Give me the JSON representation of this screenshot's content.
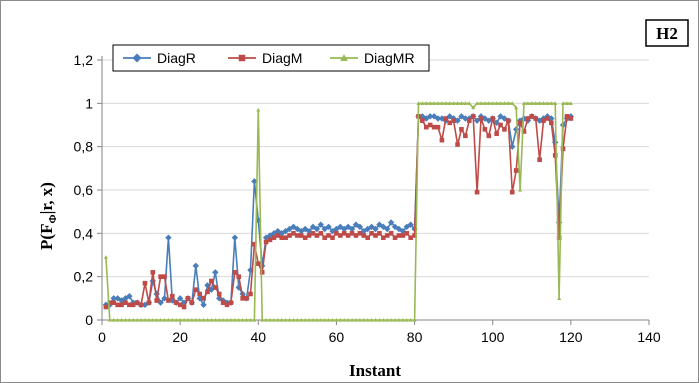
{
  "chart_data": {
    "type": "line",
    "title": "",
    "badge": "H2",
    "xlabel": "Instant",
    "ylabel": "P(F",
    "ylabel_sub": "Φ",
    "ylabel_rest": "|r, x)",
    "xlim": [
      0,
      140
    ],
    "ylim": [
      0,
      1.2
    ],
    "x_ticks": [
      "0",
      "20",
      "40",
      "60",
      "80",
      "100",
      "120",
      "140"
    ],
    "y_ticks": [
      "0",
      "0,2",
      "0,4",
      "0,6",
      "0,8",
      "1",
      "1,2"
    ],
    "grid": "horizontal",
    "legend_position": "top-left",
    "x": [
      1,
      2,
      3,
      4,
      5,
      6,
      7,
      8,
      9,
      10,
      11,
      12,
      13,
      14,
      15,
      16,
      17,
      18,
      19,
      20,
      21,
      22,
      23,
      24,
      25,
      26,
      27,
      28,
      29,
      30,
      31,
      32,
      33,
      34,
      35,
      36,
      37,
      38,
      39,
      40,
      41,
      42,
      43,
      44,
      45,
      46,
      47,
      48,
      49,
      50,
      51,
      52,
      53,
      54,
      55,
      56,
      57,
      58,
      59,
      60,
      61,
      62,
      63,
      64,
      65,
      66,
      67,
      68,
      69,
      70,
      71,
      72,
      73,
      74,
      75,
      76,
      77,
      78,
      79,
      80,
      81,
      82,
      83,
      84,
      85,
      86,
      87,
      88,
      89,
      90,
      91,
      92,
      93,
      94,
      95,
      96,
      97,
      98,
      99,
      100,
      101,
      102,
      103,
      104,
      105,
      106,
      107,
      108,
      109,
      110,
      111,
      112,
      113,
      114,
      115,
      116,
      117,
      118,
      119,
      120
    ],
    "series": [
      {
        "name": "DiagR",
        "color": "#4a7ebb",
        "marker": "diamond",
        "values": [
          0.07,
          0.07,
          0.1,
          0.1,
          0.09,
          0.1,
          0.11,
          0.08,
          0.08,
          0.07,
          0.07,
          0.08,
          0.18,
          0.12,
          0.08,
          0.1,
          0.38,
          0.09,
          0.08,
          0.1,
          0.08,
          0.1,
          0.08,
          0.25,
          0.1,
          0.07,
          0.16,
          0.14,
          0.22,
          0.1,
          0.09,
          0.08,
          0.08,
          0.38,
          0.15,
          0.12,
          0.1,
          0.23,
          0.64,
          0.46,
          0.25,
          0.38,
          0.39,
          0.4,
          0.41,
          0.4,
          0.41,
          0.42,
          0.43,
          0.42,
          0.41,
          0.42,
          0.41,
          0.43,
          0.42,
          0.44,
          0.42,
          0.43,
          0.41,
          0.42,
          0.43,
          0.42,
          0.43,
          0.42,
          0.44,
          0.43,
          0.41,
          0.42,
          0.43,
          0.42,
          0.44,
          0.43,
          0.42,
          0.45,
          0.43,
          0.42,
          0.41,
          0.43,
          0.44,
          0.42,
          0.94,
          0.94,
          0.93,
          0.94,
          0.94,
          0.93,
          0.93,
          0.92,
          0.94,
          0.93,
          0.92,
          0.94,
          0.93,
          0.93,
          0.94,
          0.92,
          0.94,
          0.93,
          0.92,
          0.93,
          0.91,
          0.94,
          0.93,
          0.92,
          0.8,
          0.88,
          0.92,
          0.93,
          0.92,
          0.94,
          0.93,
          0.92,
          0.93,
          0.94,
          0.93,
          0.82,
          0.45,
          0.9,
          0.93,
          0.94
        ]
      },
      {
        "name": "DiagM",
        "color": "#be4b48",
        "marker": "square",
        "values": [
          0.06,
          0.08,
          0.08,
          0.07,
          0.07,
          0.08,
          0.07,
          0.07,
          0.08,
          0.07,
          0.17,
          0.08,
          0.22,
          0.09,
          0.2,
          0.2,
          0.09,
          0.11,
          0.08,
          0.07,
          0.06,
          0.1,
          0.08,
          0.14,
          0.12,
          0.1,
          0.13,
          0.18,
          0.15,
          0.12,
          0.08,
          0.07,
          0.08,
          0.22,
          0.2,
          0.1,
          0.1,
          0.12,
          0.35,
          0.26,
          0.22,
          0.36,
          0.37,
          0.38,
          0.39,
          0.38,
          0.38,
          0.39,
          0.4,
          0.39,
          0.39,
          0.38,
          0.39,
          0.4,
          0.39,
          0.4,
          0.38,
          0.39,
          0.38,
          0.4,
          0.39,
          0.4,
          0.39,
          0.4,
          0.39,
          0.4,
          0.39,
          0.38,
          0.4,
          0.39,
          0.4,
          0.38,
          0.39,
          0.4,
          0.38,
          0.39,
          0.39,
          0.4,
          0.38,
          0.39,
          0.94,
          0.92,
          0.89,
          0.9,
          0.89,
          0.89,
          0.83,
          0.93,
          0.91,
          0.92,
          0.81,
          0.88,
          0.85,
          0.92,
          0.94,
          0.59,
          0.93,
          0.88,
          0.85,
          0.93,
          0.86,
          0.9,
          0.88,
          0.92,
          0.59,
          0.69,
          0.91,
          0.87,
          0.93,
          0.94,
          0.93,
          0.74,
          0.92,
          0.93,
          0.91,
          0.76,
          0.38,
          0.79,
          0.94,
          0.93
        ]
      },
      {
        "name": "DiagMR",
        "color": "#98b954",
        "marker": "triangle",
        "values": [
          0.29,
          0,
          0,
          0,
          0,
          0,
          0,
          0,
          0,
          0,
          0,
          0,
          0,
          0,
          0,
          0,
          0,
          0,
          0,
          0,
          0,
          0,
          0,
          0,
          0,
          0,
          0,
          0,
          0,
          0,
          0,
          0,
          0,
          0,
          0,
          0,
          0,
          0,
          0,
          0.97,
          0,
          0,
          0,
          0,
          0,
          0,
          0,
          0,
          0,
          0,
          0,
          0,
          0,
          0,
          0,
          0,
          0,
          0,
          0,
          0,
          0,
          0,
          0,
          0,
          0,
          0,
          0,
          0,
          0,
          0,
          0,
          0,
          0,
          0,
          0,
          0,
          0,
          0,
          0,
          0,
          1,
          1,
          1,
          1,
          1,
          1,
          1,
          1,
          1,
          1,
          1,
          1,
          1,
          1,
          0.98,
          1,
          1,
          1,
          1,
          1,
          1,
          1,
          1,
          1,
          1,
          0.98,
          0.6,
          1,
          1,
          1,
          1,
          1,
          1,
          1,
          1,
          1,
          0.1,
          1,
          1,
          1
        ]
      }
    ]
  }
}
